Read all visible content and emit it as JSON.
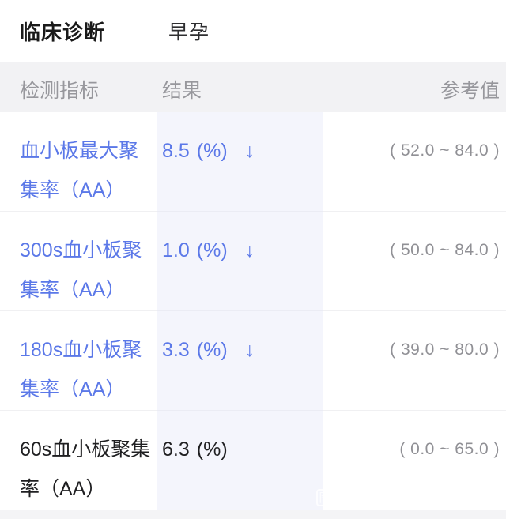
{
  "header": {
    "diagnosis_label": "临床诊断",
    "diagnosis_value": "早孕"
  },
  "table": {
    "columns": {
      "indicator": "检测指标",
      "result": "结果",
      "reference": "参考值"
    },
    "rows": [
      {
        "indicator": "血小板最大聚集率（AA）",
        "value": "8.5",
        "unit": "(%)",
        "flag": "↓",
        "reference": "( 52.0 ~ 84.0 )",
        "abnormal": true
      },
      {
        "indicator": "300s血小板聚集率（AA）",
        "value": "1.0",
        "unit": "(%)",
        "flag": "↓",
        "reference": "( 50.0 ~ 84.0 )",
        "abnormal": true
      },
      {
        "indicator": "180s血小板聚集率（AA）",
        "value": "3.3",
        "unit": "(%)",
        "flag": "↓",
        "reference": "( 39.0 ~ 80.0 )",
        "abnormal": true
      },
      {
        "indicator": "60s血小板聚集率（AA）",
        "value": "6.3",
        "unit": "(%)",
        "flag": "",
        "reference": "( 0.0 ~ 65.0 )",
        "abnormal": false
      }
    ]
  },
  "watermark": {
    "icon_label": "图"
  },
  "colors": {
    "abnormal_text": "#5b78e8",
    "normal_text": "#1f1f21",
    "reference_text": "#909095",
    "column_header_text": "#97979c",
    "column_header_bg": "#f2f2f4",
    "result_column_band": "#f5f6fb",
    "row_divider": "#f0f0f2",
    "bottom_strip": "#f4f4f6"
  }
}
